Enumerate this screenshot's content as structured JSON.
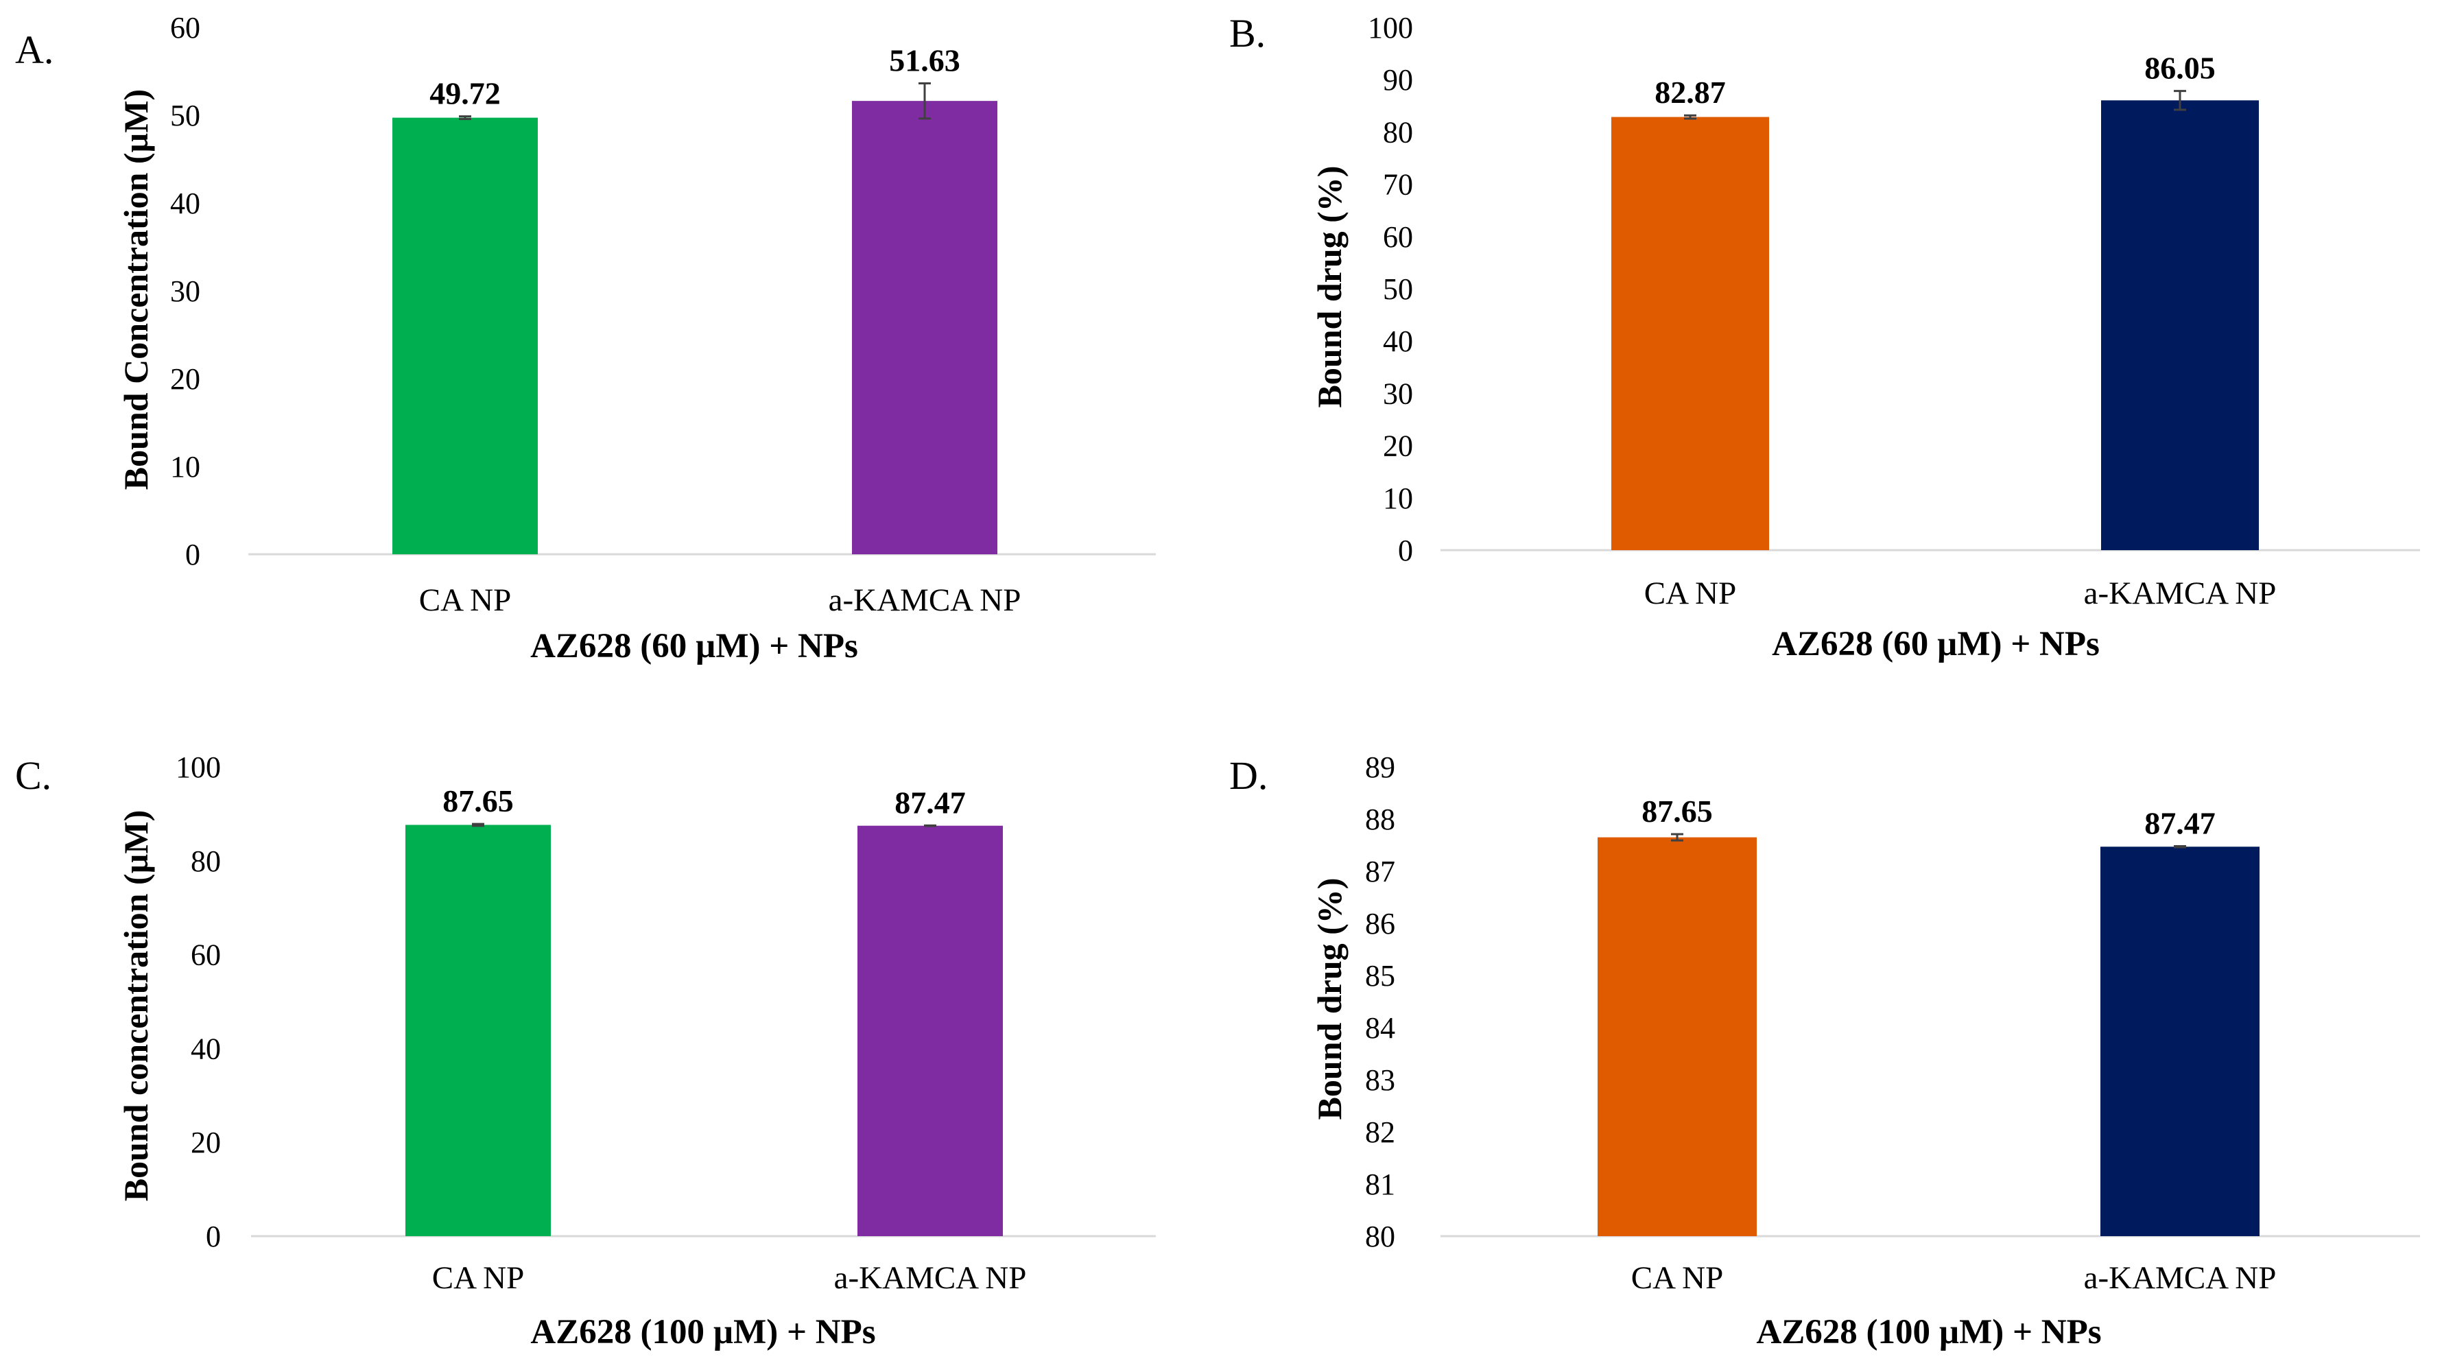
{
  "chart_data": [
    {
      "panel": "A.",
      "type": "bar",
      "categories": [
        "CA NP",
        "a-KAMCA NP"
      ],
      "values": [
        49.72,
        51.63
      ],
      "errors": [
        0.15,
        2.0
      ],
      "data_labels": [
        "49.72",
        "51.63"
      ],
      "colors": [
        "#00b050",
        "#7f2ba1"
      ],
      "xlabel": "AZ628 (60 µM) + NPs",
      "ylabel": "Bound Concentration (µM)",
      "ylim": [
        0,
        60
      ],
      "yticks": [
        0,
        10,
        20,
        30,
        40,
        50,
        60
      ],
      "grid": false
    },
    {
      "panel": "B.",
      "type": "bar",
      "categories": [
        "CA NP",
        "a-KAMCA NP"
      ],
      "values": [
        82.87,
        86.05
      ],
      "errors": [
        0.3,
        1.8
      ],
      "data_labels": [
        "82.87",
        "86.05"
      ],
      "colors": [
        "#e05a00",
        "#001a5e"
      ],
      "xlabel": "AZ628 (60 µM) + NPs",
      "ylabel": "Bound drug (%)",
      "ylim": [
        0,
        100
      ],
      "yticks": [
        0,
        10,
        20,
        30,
        40,
        50,
        60,
        70,
        80,
        90,
        100
      ],
      "grid": false
    },
    {
      "panel": "C.",
      "type": "bar",
      "categories": [
        "CA NP",
        "a-KAMCA NP"
      ],
      "values": [
        87.65,
        87.47
      ],
      "errors": [
        0.2,
        0.05
      ],
      "data_labels": [
        "87.65",
        "87.47"
      ],
      "colors": [
        "#00b050",
        "#7f2ba1"
      ],
      "xlabel": "AZ628 (100 µM) + NPs",
      "ylabel": "Bound concentration (µM)",
      "ylim": [
        0,
        100
      ],
      "yticks": [
        0,
        20,
        40,
        60,
        80,
        100
      ],
      "grid": false
    },
    {
      "panel": "D.",
      "type": "bar",
      "categories": [
        "CA NP",
        "a-KAMCA NP"
      ],
      "values": [
        87.65,
        87.47
      ],
      "errors": [
        0.06,
        0.01
      ],
      "data_labels": [
        "87.65",
        "87.47"
      ],
      "colors": [
        "#e05a00",
        "#001a5e"
      ],
      "xlabel": "AZ628 (100 µM) + NPs",
      "ylabel": "Bound drug (%)",
      "ylim": [
        80,
        89
      ],
      "yticks": [
        80,
        81,
        82,
        83,
        84,
        85,
        86,
        87,
        88,
        89
      ],
      "grid": false
    }
  ]
}
